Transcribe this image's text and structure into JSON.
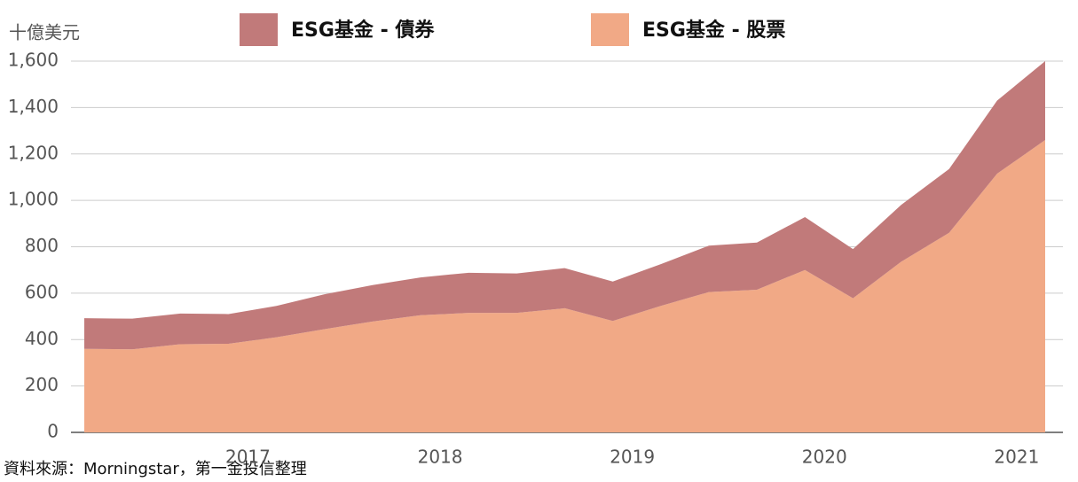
{
  "chart_data": {
    "type": "area",
    "stacked": true,
    "y_label": "十億美元",
    "source": "資料來源：Morningstar，第一金投信整理",
    "categories": [
      null,
      null,
      null,
      "2017",
      null,
      null,
      null,
      "2018",
      null,
      null,
      null,
      "2019",
      null,
      null,
      null,
      "2020",
      null,
      null,
      null,
      "2021",
      null
    ],
    "series": [
      {
        "name": "ESG基金 - 股票",
        "color": "#f1a986",
        "values": [
          360,
          358,
          380,
          382,
          410,
          445,
          478,
          505,
          515,
          515,
          535,
          480,
          545,
          605,
          615,
          700,
          578,
          735,
          860,
          1115,
          1260
        ]
      },
      {
        "name": "ESG基金 - 債券",
        "color": "#c17a7a",
        "values": [
          132,
          132,
          132,
          128,
          135,
          150,
          157,
          163,
          173,
          170,
          173,
          170,
          180,
          200,
          203,
          228,
          212,
          245,
          275,
          315,
          340
        ]
      }
    ],
    "ylim": [
      0,
      1600
    ],
    "yticks": [
      0,
      200,
      400,
      600,
      800,
      {
        "value": 1000,
        "label": "1,000"
      },
      {
        "value": 1200,
        "label": "1,200"
      },
      {
        "value": 1400,
        "label": "1,400"
      },
      {
        "value": 1600,
        "label": "1,600"
      }
    ],
    "grid": true
  }
}
